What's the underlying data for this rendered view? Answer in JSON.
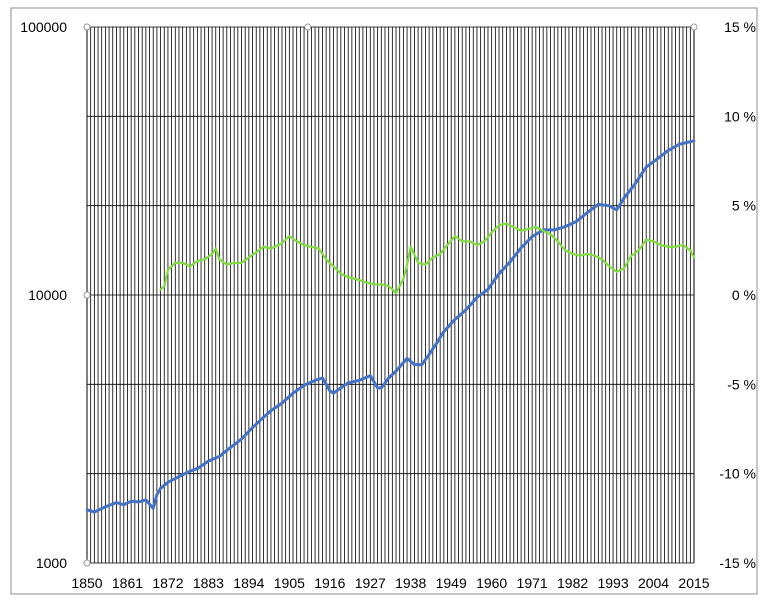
{
  "chart_data": {
    "type": "line",
    "title": "",
    "xlabel": "",
    "ylabel": "",
    "x_tick_labels": [
      "1850",
      "1861",
      "1872",
      "1883",
      "1894",
      "1905",
      "1916",
      "1927",
      "1938",
      "1949",
      "1960",
      "1971",
      "1982",
      "1993",
      "2004",
      "2015"
    ],
    "x_range": [
      1850,
      2015
    ],
    "y_left": {
      "scale": "log",
      "range": [
        1000,
        100000
      ],
      "tick_labels": [
        "1000",
        "10000",
        "100000"
      ]
    },
    "y_right": {
      "scale": "linear",
      "range": [
        -15,
        15
      ],
      "tick_labels": [
        "-15 %",
        "-10 %",
        "-5 %",
        "0 %",
        "5 %",
        "10 %",
        "15 %"
      ]
    },
    "grid": {
      "vertical": "every year",
      "horizontal": "at right-axis ticks"
    },
    "series": [
      {
        "axis": "left",
        "color": "#4472c4",
        "x": [
          1850,
          1852,
          1855,
          1858,
          1860,
          1862,
          1864,
          1866,
          1868,
          1869,
          1870,
          1872,
          1875,
          1878,
          1880,
          1883,
          1886,
          1889,
          1892,
          1895,
          1898,
          1900,
          1903,
          1906,
          1909,
          1912,
          1914,
          1916,
          1917,
          1919,
          1921,
          1924,
          1927,
          1929,
          1930,
          1932,
          1934,
          1937,
          1939,
          1941,
          1943,
          1945,
          1947,
          1950,
          1953,
          1956,
          1959,
          1962,
          1965,
          1968,
          1971,
          1974,
          1977,
          1980,
          1983,
          1986,
          1989,
          1992,
          1994,
          1996,
          1999,
          2002,
          2005,
          2008,
          2011,
          2015
        ],
        "y": [
          1580,
          1550,
          1620,
          1680,
          1650,
          1700,
          1690,
          1720,
          1600,
          1800,
          1900,
          2000,
          2100,
          2200,
          2250,
          2400,
          2500,
          2700,
          2900,
          3200,
          3500,
          3700,
          3950,
          4300,
          4600,
          4800,
          4900,
          4400,
          4300,
          4500,
          4700,
          4800,
          5000,
          4500,
          4500,
          4900,
          5200,
          5800,
          5500,
          5500,
          6000,
          6600,
          7300,
          8100,
          8800,
          9800,
          10500,
          12000,
          13300,
          15000,
          16500,
          17500,
          17500,
          18000,
          18800,
          20300,
          21800,
          21500,
          20800,
          23000,
          26000,
          30000,
          32200,
          34600,
          36500,
          37600
        ]
      },
      {
        "axis": "right",
        "color": "#7fdc3c",
        "x": [
          1870,
          1871,
          1872,
          1874,
          1876,
          1878,
          1880,
          1882,
          1884,
          1885,
          1886,
          1888,
          1890,
          1892,
          1894,
          1896,
          1898,
          1900,
          1903,
          1905,
          1907,
          1909,
          1911,
          1913,
          1915,
          1917,
          1919,
          1921,
          1923,
          1926,
          1928,
          1930,
          1932,
          1933,
          1934,
          1936,
          1937,
          1938,
          1940,
          1942,
          1944,
          1946,
          1948,
          1950,
          1952,
          1954,
          1956,
          1958,
          1960,
          1962,
          1964,
          1966,
          1968,
          1970,
          1972,
          1974,
          1976,
          1978,
          1980,
          1982,
          1984,
          1986,
          1988,
          1990,
          1992,
          1994,
          1996,
          1998,
          2000,
          2002,
          2004,
          2006,
          2008,
          2010,
          2012,
          2014,
          2015
        ],
        "y": [
          0.3,
          0.5,
          1.4,
          1.8,
          1.8,
          1.6,
          1.9,
          2.0,
          2.3,
          2.6,
          2.0,
          1.7,
          1.8,
          1.8,
          2.1,
          2.4,
          2.7,
          2.6,
          2.9,
          3.3,
          3.0,
          2.8,
          2.7,
          2.6,
          2.0,
          1.6,
          1.2,
          1.0,
          0.9,
          0.7,
          0.6,
          0.6,
          0.5,
          0.3,
          0.1,
          0.9,
          1.7,
          2.7,
          1.8,
          1.7,
          2.1,
          2.3,
          2.8,
          3.3,
          3.0,
          3.0,
          2.8,
          3.0,
          3.5,
          3.9,
          4.0,
          3.8,
          3.6,
          3.7,
          3.8,
          3.6,
          3.4,
          3.0,
          2.5,
          2.3,
          2.2,
          2.3,
          2.2,
          2.0,
          1.6,
          1.3,
          1.5,
          2.2,
          2.5,
          3.1,
          3.0,
          2.8,
          2.7,
          2.7,
          2.8,
          2.5,
          2.1
        ]
      }
    ]
  }
}
